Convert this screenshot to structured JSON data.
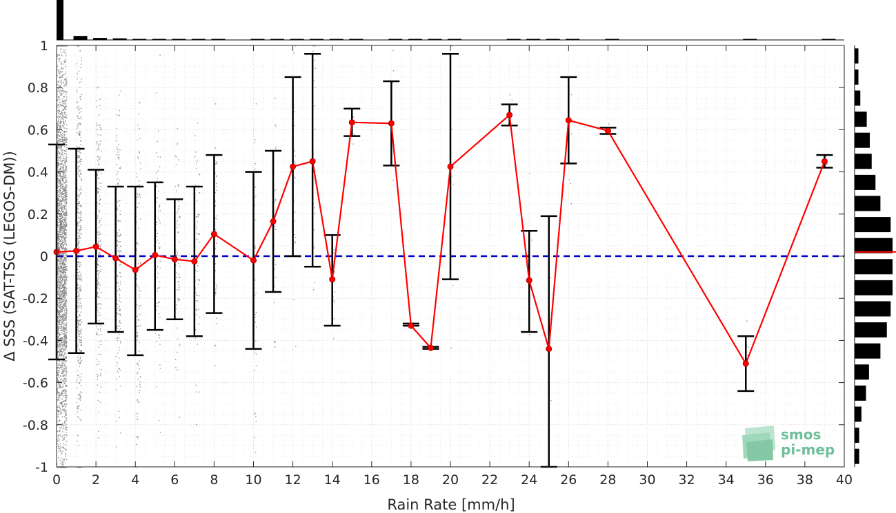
{
  "chart_data": {
    "type": "line",
    "xlabel": "Rain Rate [mm/h]",
    "ylabel": "Δ SSS (SAT-TSG (LEGOS-DM))",
    "xlim": [
      0,
      40
    ],
    "ylim": [
      -1,
      1
    ],
    "x_ticks": [
      0,
      2,
      4,
      6,
      8,
      10,
      12,
      14,
      16,
      18,
      20,
      22,
      24,
      26,
      28,
      30,
      32,
      34,
      36,
      38,
      40
    ],
    "y_ticks": [
      -1,
      -0.8,
      -0.6,
      -0.4,
      -0.2,
      0,
      0.2,
      0.4,
      0.6,
      0.8,
      1
    ],
    "grid": true,
    "reference_line": {
      "y": 0,
      "color": "#0000cc",
      "style": "dashed"
    },
    "series": [
      {
        "type": "line",
        "color": "#ff0000",
        "points": [
          {
            "x": 0,
            "y": 0.02,
            "low": -0.49,
            "high": 0.53
          },
          {
            "x": 1,
            "y": 0.025,
            "low": -0.46,
            "high": 0.51
          },
          {
            "x": 2,
            "y": 0.045,
            "low": -0.32,
            "high": 0.41
          },
          {
            "x": 3,
            "y": -0.01,
            "low": -0.36,
            "high": 0.33
          },
          {
            "x": 4,
            "y": -0.065,
            "low": -0.47,
            "high": 0.33
          },
          {
            "x": 5,
            "y": 0.005,
            "low": -0.35,
            "high": 0.35
          },
          {
            "x": 6,
            "y": -0.015,
            "low": -0.3,
            "high": 0.27
          },
          {
            "x": 7,
            "y": -0.025,
            "low": -0.38,
            "high": 0.33
          },
          {
            "x": 8,
            "y": 0.105,
            "low": -0.27,
            "high": 0.48
          },
          {
            "x": 10,
            "y": -0.02,
            "low": -0.44,
            "high": 0.4
          },
          {
            "x": 11,
            "y": 0.165,
            "low": -0.17,
            "high": 0.5
          },
          {
            "x": 12,
            "y": 0.425,
            "low": 0.0,
            "high": 0.85
          },
          {
            "x": 13,
            "y": 0.45,
            "low": -0.05,
            "high": 0.96
          },
          {
            "x": 14,
            "y": -0.11,
            "low": -0.33,
            "high": 0.1
          },
          {
            "x": 15,
            "y": 0.635,
            "low": 0.57,
            "high": 0.7
          },
          {
            "x": 17,
            "y": 0.63,
            "low": 0.43,
            "high": 0.83
          },
          {
            "x": 18,
            "y": -0.33,
            "low": -0.33,
            "high": -0.32
          },
          {
            "x": 19,
            "y": -0.435,
            "low": -0.44,
            "high": -0.43
          },
          {
            "x": 20,
            "y": 0.425,
            "low": -0.11,
            "high": 0.96
          },
          {
            "x": 23,
            "y": 0.67,
            "low": 0.62,
            "high": 0.72
          },
          {
            "x": 24,
            "y": -0.115,
            "low": -0.36,
            "high": 0.12
          },
          {
            "x": 25,
            "y": -0.44,
            "low": -1.0,
            "high": 0.19
          },
          {
            "x": 26,
            "y": 0.645,
            "low": 0.44,
            "high": 0.85
          },
          {
            "x": 28,
            "y": 0.595,
            "low": 0.58,
            "high": 0.61
          },
          {
            "x": 35,
            "y": -0.51,
            "low": -0.64,
            "high": -0.38
          },
          {
            "x": 39,
            "y": 0.45,
            "low": 0.42,
            "high": 0.48
          }
        ]
      }
    ],
    "top_histogram": {
      "bin_x": [
        0,
        1,
        2,
        3,
        4,
        5,
        6,
        7,
        8,
        10,
        11,
        12,
        13,
        14,
        15,
        17,
        18,
        19,
        20,
        23,
        24,
        25,
        26,
        28,
        35,
        39
      ],
      "relative_counts": [
        1.0,
        0.1,
        0.05,
        0.04,
        0.025,
        0.02,
        0.02,
        0.015,
        0.015,
        0.01,
        0.01,
        0.01,
        0.01,
        0.008,
        0.008,
        0.008,
        0.008,
        0.008,
        0.008,
        0.008,
        0.008,
        0.008,
        0.008,
        0.008,
        0.008,
        0.008
      ]
    },
    "right_histogram": {
      "bin_centers": [
        0.95,
        0.85,
        0.75,
        0.65,
        0.55,
        0.45,
        0.35,
        0.25,
        0.15,
        0.05,
        -0.05,
        -0.15,
        -0.25,
        -0.35,
        -0.45,
        -0.55,
        -0.65,
        -0.75,
        -0.85,
        -0.95
      ],
      "relative_counts": [
        0.1,
        0.1,
        0.15,
        0.32,
        0.4,
        0.45,
        0.55,
        0.68,
        0.95,
        1.0,
        1.0,
        1.05,
        0.95,
        0.85,
        0.68,
        0.38,
        0.3,
        0.18,
        0.12,
        0.12
      ],
      "mean_line_y": 0.02
    },
    "scatter_color": "#808080"
  },
  "logo": {
    "line1": "smos",
    "line2": "pi-mep",
    "color": "#6fbf9a"
  }
}
